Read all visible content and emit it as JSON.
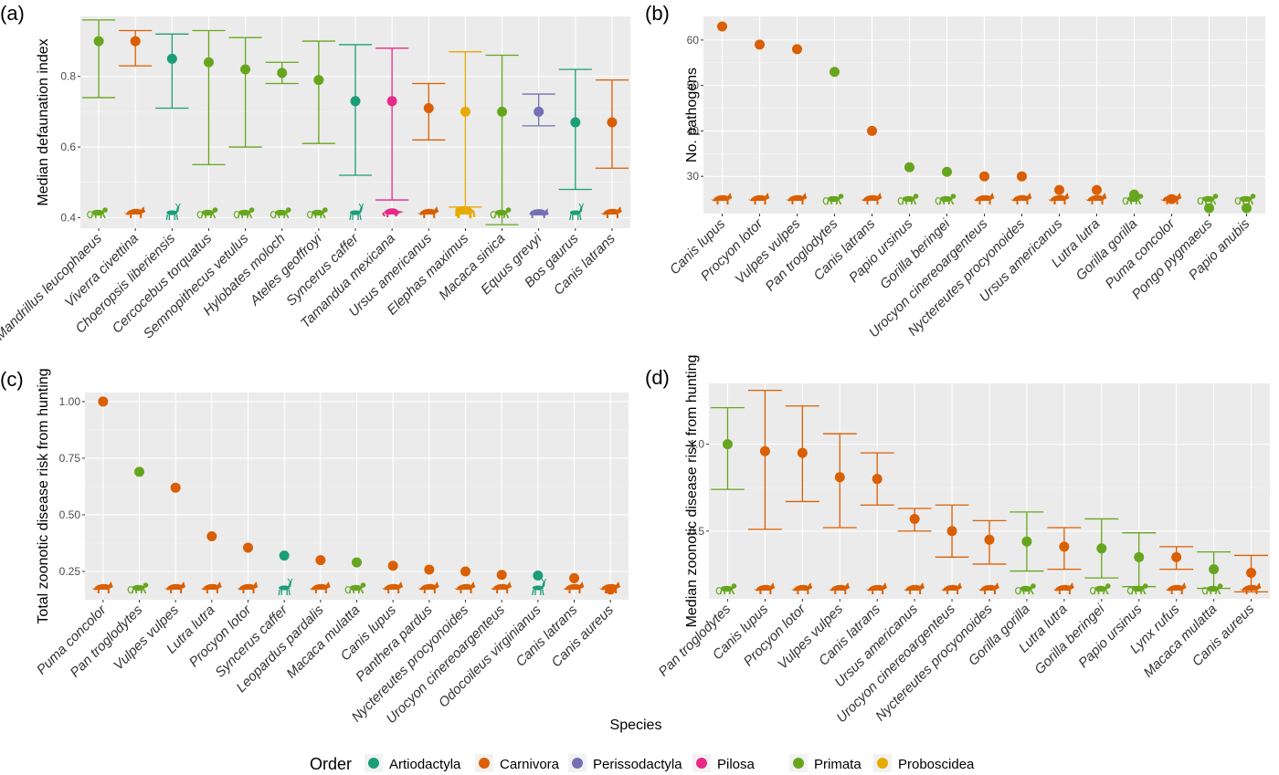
{
  "colors": {
    "Artiodactyla": "#1b9e77",
    "Carnivora": "#d95f02",
    "Perissodactyla": "#7570b3",
    "Pilosa": "#e7298a",
    "Primata": "#66a61e",
    "Proboscidea": "#e6ab02"
  },
  "figure": {
    "xlabel": "Species",
    "legend": {
      "title": "Order",
      "items": [
        "Artiodactyla",
        "Carnivora",
        "Perissodactyla",
        "Pilosa",
        "Primata",
        "Proboscidea"
      ]
    }
  },
  "chart_data": [
    {
      "panel": "(a)",
      "type": "scatter",
      "ylabel": "Median defaunation index",
      "ylim": [
        0.37,
        0.97
      ],
      "yticks": [
        0.4,
        0.6,
        0.8
      ],
      "ytick_labels": [
        "0.4",
        "0.6",
        "0.8"
      ],
      "errorbars": true,
      "points": [
        {
          "species": "Mandrillus leucophaeus",
          "order": "Primata",
          "y": 0.9,
          "lo": 0.74,
          "hi": 0.96,
          "icon": "monkey"
        },
        {
          "species": "Viverra civettina",
          "order": "Carnivora",
          "y": 0.9,
          "lo": 0.83,
          "hi": 0.93,
          "icon": "carnivore"
        },
        {
          "species": "Choeropsis liberiensis",
          "order": "Artiodactyla",
          "y": 0.85,
          "lo": 0.71,
          "hi": 0.92,
          "icon": "deer"
        },
        {
          "species": "Cercocebus torquatus",
          "order": "Primata",
          "y": 0.84,
          "lo": 0.55,
          "hi": 0.93,
          "icon": "monkey"
        },
        {
          "species": "Semnopithecus vetulus",
          "order": "Primata",
          "y": 0.82,
          "lo": 0.6,
          "hi": 0.91,
          "icon": "monkey"
        },
        {
          "species": "Hylobates moloch",
          "order": "Primata",
          "y": 0.81,
          "lo": 0.78,
          "hi": 0.84,
          "icon": "monkey"
        },
        {
          "species": "Ateles geoffroyi",
          "order": "Primata",
          "y": 0.79,
          "lo": 0.61,
          "hi": 0.9,
          "icon": "monkey"
        },
        {
          "species": "Syncerus caffer",
          "order": "Artiodactyla",
          "y": 0.73,
          "lo": 0.52,
          "hi": 0.89,
          "icon": "deer"
        },
        {
          "species": "Tamandua mexicana",
          "order": "Pilosa",
          "y": 0.73,
          "lo": 0.45,
          "hi": 0.88,
          "icon": "anteater"
        },
        {
          "species": "Ursus americanus",
          "order": "Carnivora",
          "y": 0.71,
          "lo": 0.62,
          "hi": 0.78,
          "icon": "carnivore"
        },
        {
          "species": "Elephas maximus",
          "order": "Proboscidea",
          "y": 0.7,
          "lo": 0.43,
          "hi": 0.87,
          "icon": "elephant"
        },
        {
          "species": "Macaca sinica",
          "order": "Primata",
          "y": 0.7,
          "lo": 0.38,
          "hi": 0.86,
          "icon": "monkey"
        },
        {
          "species": "Equus grevyi",
          "order": "Perissodactyla",
          "y": 0.7,
          "lo": 0.66,
          "hi": 0.75,
          "icon": "rhino"
        },
        {
          "species": "Bos gaurus",
          "order": "Artiodactyla",
          "y": 0.67,
          "lo": 0.48,
          "hi": 0.82,
          "icon": "deer"
        },
        {
          "species": "Canis latrans",
          "order": "Carnivora",
          "y": 0.67,
          "lo": 0.54,
          "hi": 0.79,
          "icon": "carnivore"
        }
      ]
    },
    {
      "panel": "(b)",
      "type": "scatter",
      "ylabel": "No. pathogens",
      "ylim": [
        21.8,
        65.2
      ],
      "yticks": [
        30,
        40,
        50,
        60
      ],
      "ytick_labels": [
        "30",
        "40",
        "50",
        "60"
      ],
      "errorbars": false,
      "points": [
        {
          "species": "Canis lupus",
          "order": "Carnivora",
          "y": 63,
          "icon": "carnivore"
        },
        {
          "species": "Procyon lotor",
          "order": "Carnivora",
          "y": 59,
          "icon": "carnivore"
        },
        {
          "species": "Vulpes vulpes",
          "order": "Carnivora",
          "y": 58,
          "icon": "carnivore"
        },
        {
          "species": "Pan troglodytes",
          "order": "Primata",
          "y": 53,
          "icon": "monkey"
        },
        {
          "species": "Canis latrans",
          "order": "Carnivora",
          "y": 40,
          "icon": "carnivore"
        },
        {
          "species": "Papio ursinus",
          "order": "Primata",
          "y": 32,
          "icon": "monkey"
        },
        {
          "species": "Gorilla beringei",
          "order": "Primata",
          "y": 31,
          "icon": "monkey"
        },
        {
          "species": "Urocyon cinereoargenteus",
          "order": "Carnivora",
          "y": 30,
          "icon": "carnivore"
        },
        {
          "species": "Nyctereutes procyonoides",
          "order": "Carnivora",
          "y": 30,
          "icon": "carnivore"
        },
        {
          "species": "Ursus americanus",
          "order": "Carnivora",
          "y": 27,
          "icon": "carnivore"
        },
        {
          "species": "Lutra lutra",
          "order": "Carnivora",
          "y": 27,
          "icon": "carnivore"
        },
        {
          "species": "Gorilla gorilla",
          "order": "Primata",
          "y": 26,
          "icon": "monkey"
        },
        {
          "species": "Puma concolor",
          "order": "Carnivora",
          "y": 25,
          "icon": "carnivore"
        },
        {
          "species": "Pongo pygmaeus",
          "order": "Primata",
          "y": 23,
          "icon": "monkey"
        },
        {
          "species": "Papio anubis",
          "order": "Primata",
          "y": 23,
          "icon": "monkey"
        }
      ]
    },
    {
      "panel": "(c)",
      "type": "scatter",
      "ylabel": "Total zoonotic disease risk from hunting",
      "ylim": [
        0.125,
        1.04
      ],
      "yticks": [
        0.25,
        0.5,
        0.75,
        1.0
      ],
      "ytick_labels": [
        "0.25",
        "0.50",
        "0.75",
        "1.00"
      ],
      "errorbars": false,
      "points": [
        {
          "species": "Puma concolor",
          "order": "Carnivora",
          "y": 1.0,
          "icon": "carnivore"
        },
        {
          "species": "Pan troglodytes",
          "order": "Primata",
          "y": 0.69,
          "icon": "monkey"
        },
        {
          "species": "Vulpes vulpes",
          "order": "Carnivora",
          "y": 0.62,
          "icon": "carnivore"
        },
        {
          "species": "Lutra lutra",
          "order": "Carnivora",
          "y": 0.405,
          "icon": "carnivore"
        },
        {
          "species": "Procyon lotor",
          "order": "Carnivora",
          "y": 0.355,
          "icon": "carnivore"
        },
        {
          "species": "Syncerus caffer",
          "order": "Artiodactyla",
          "y": 0.32,
          "icon": "deer"
        },
        {
          "species": "Leopardus pardalis",
          "order": "Carnivora",
          "y": 0.3,
          "icon": "carnivore"
        },
        {
          "species": "Macaca mulatta",
          "order": "Primata",
          "y": 0.29,
          "icon": "monkey"
        },
        {
          "species": "Canis lupus",
          "order": "Carnivora",
          "y": 0.275,
          "icon": "carnivore"
        },
        {
          "species": "Panthera pardus",
          "order": "Carnivora",
          "y": 0.258,
          "icon": "carnivore"
        },
        {
          "species": "Nyctereutes procyonoides",
          "order": "Carnivora",
          "y": 0.25,
          "icon": "carnivore"
        },
        {
          "species": "Urocyon cinereoargenteus",
          "order": "Carnivora",
          "y": 0.235,
          "icon": "carnivore"
        },
        {
          "species": "Odocoileus virginianus",
          "order": "Artiodactyla",
          "y": 0.232,
          "icon": "deer"
        },
        {
          "species": "Canis latrans",
          "order": "Carnivora",
          "y": 0.22,
          "icon": "carnivore"
        },
        {
          "species": "Canis aureus",
          "order": "Carnivora",
          "y": 0.17,
          "icon": "carnivore"
        }
      ]
    },
    {
      "panel": "(d)",
      "type": "scatter",
      "ylabel": "Median zoonotic disease risk from hunting",
      "ylim": [
        0.11,
        1.35
      ],
      "yticks": [
        0.5,
        1.0
      ],
      "ytick_labels": [
        "0.5",
        "1.0"
      ],
      "errorbars": true,
      "points": [
        {
          "species": "Pan troglodytes",
          "order": "Primata",
          "y": 1.0,
          "lo": 0.74,
          "hi": 1.21,
          "icon": "monkey"
        },
        {
          "species": "Canis lupus",
          "order": "Carnivora",
          "y": 0.96,
          "lo": 0.51,
          "hi": 1.31,
          "icon": "carnivore"
        },
        {
          "species": "Procyon lotor",
          "order": "Carnivora",
          "y": 0.95,
          "lo": 0.67,
          "hi": 1.22,
          "icon": "carnivore"
        },
        {
          "species": "Vulpes vulpes",
          "order": "Carnivora",
          "y": 0.81,
          "lo": 0.52,
          "hi": 1.06,
          "icon": "carnivore"
        },
        {
          "species": "Canis latrans",
          "order": "Carnivora",
          "y": 0.8,
          "lo": 0.65,
          "hi": 0.95,
          "icon": "carnivore"
        },
        {
          "species": "Ursus americanus",
          "order": "Carnivora",
          "y": 0.57,
          "lo": 0.5,
          "hi": 0.63,
          "icon": "carnivore"
        },
        {
          "species": "Urocyon cinereoargenteus",
          "order": "Carnivora",
          "y": 0.5,
          "lo": 0.35,
          "hi": 0.65,
          "icon": "carnivore"
        },
        {
          "species": "Nyctereutes procyonoides",
          "order": "Carnivora",
          "y": 0.45,
          "lo": 0.31,
          "hi": 0.56,
          "icon": "carnivore"
        },
        {
          "species": "Gorilla gorilla",
          "order": "Primata",
          "y": 0.44,
          "lo": 0.27,
          "hi": 0.61,
          "icon": "monkey"
        },
        {
          "species": "Lutra lutra",
          "order": "Carnivora",
          "y": 0.41,
          "lo": 0.28,
          "hi": 0.52,
          "icon": "carnivore"
        },
        {
          "species": "Gorilla beringei",
          "order": "Primata",
          "y": 0.4,
          "lo": 0.23,
          "hi": 0.57,
          "icon": "monkey"
        },
        {
          "species": "Papio ursinus",
          "order": "Primata",
          "y": 0.35,
          "lo": 0.18,
          "hi": 0.49,
          "icon": "monkey"
        },
        {
          "species": "Lynx rufus",
          "order": "Carnivora",
          "y": 0.35,
          "lo": 0.28,
          "hi": 0.41,
          "icon": "carnivore"
        },
        {
          "species": "Macaca mulatta",
          "order": "Primata",
          "y": 0.28,
          "lo": 0.17,
          "hi": 0.38,
          "icon": "monkey"
        },
        {
          "species": "Canis aureus",
          "order": "Carnivora",
          "y": 0.26,
          "lo": 0.15,
          "hi": 0.36,
          "icon": "carnivore"
        }
      ]
    }
  ]
}
